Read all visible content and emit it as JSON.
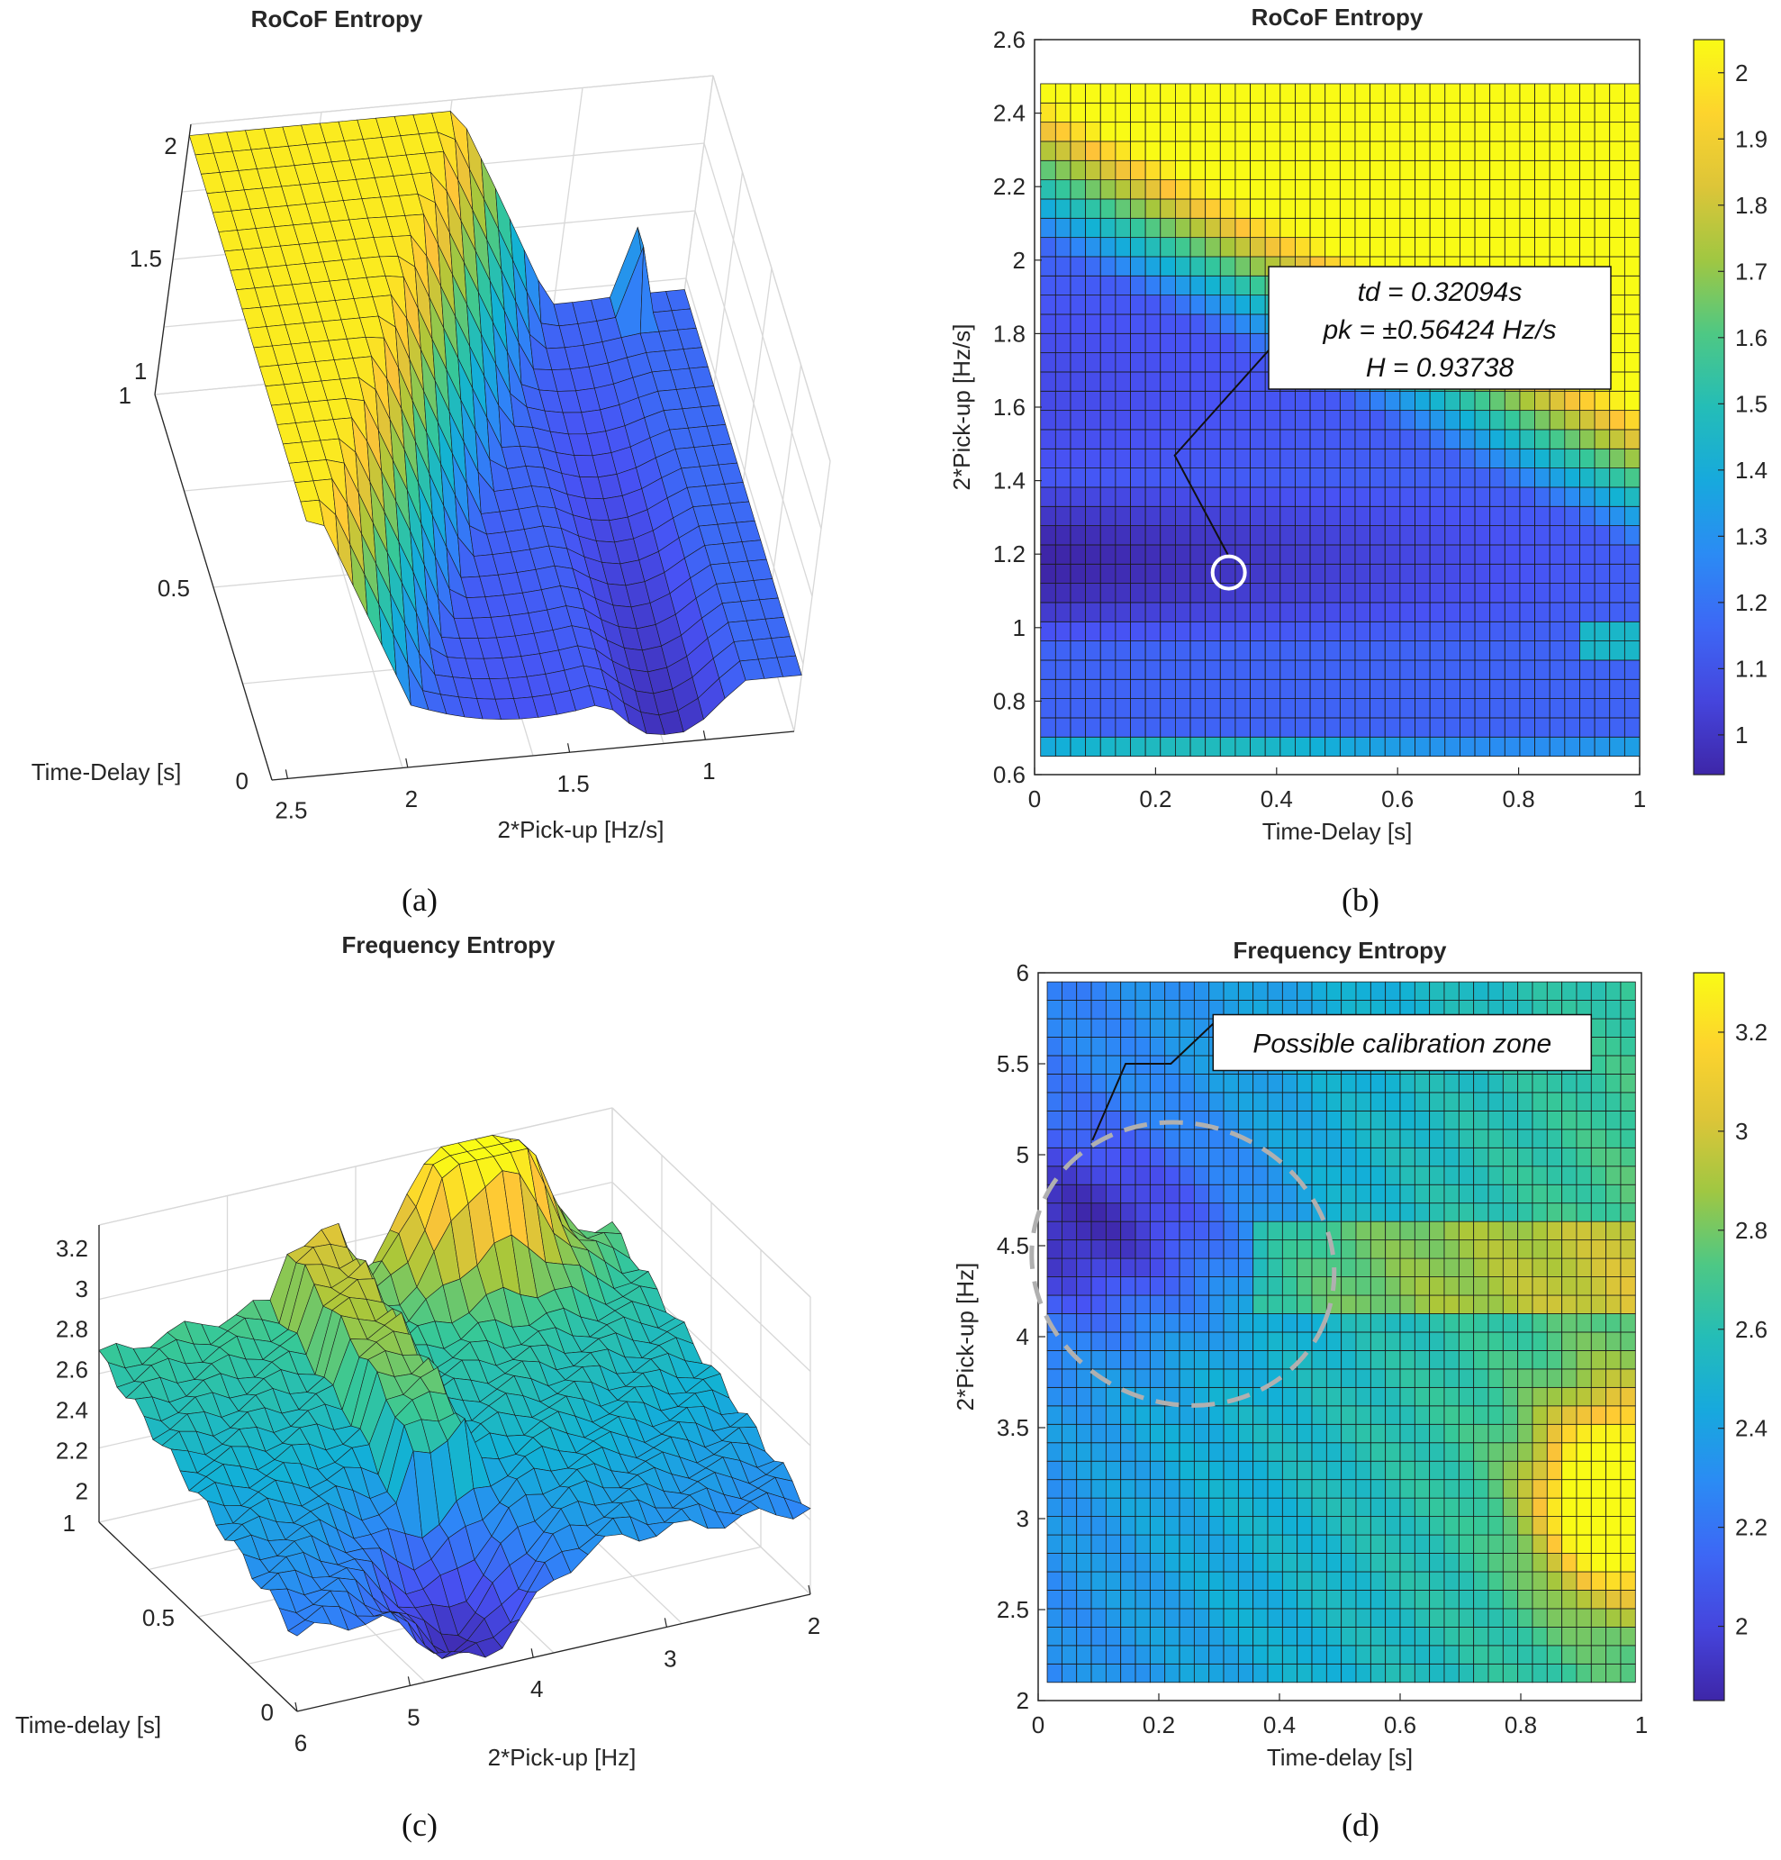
{
  "chart_data": [
    {
      "panel": "a",
      "type": "surface3d",
      "title": "RoCoF Entropy",
      "xlabel": "2*Pick-up [Hz/s]",
      "ylabel": "Time-Delay [s]",
      "xticks": [
        "2.5",
        "2",
        "1.5",
        "1"
      ],
      "yticks": [
        "0",
        "0.5",
        "1"
      ],
      "zticks": [
        "1",
        "1.5",
        "2"
      ],
      "zlim": [
        0.9,
        2.1
      ],
      "caption": "(a)"
    },
    {
      "panel": "b",
      "type": "heatmap",
      "title": "RoCoF Entropy",
      "xlabel": "Time-Delay [s]",
      "ylabel": "2*Pick-up [Hz/s]",
      "xlim": [
        0,
        1
      ],
      "ylim": [
        0.6,
        2.6
      ],
      "xticks": [
        "0",
        "0.2",
        "0.4",
        "0.6",
        "0.8",
        "1"
      ],
      "yticks": [
        "0.6",
        "0.8",
        "1",
        "1.2",
        "1.4",
        "1.6",
        "1.8",
        "2",
        "2.2",
        "2.4",
        "2.6"
      ],
      "colorbar_ticks": [
        "1",
        "1.1",
        "1.2",
        "1.3",
        "1.4",
        "1.5",
        "1.6",
        "1.7",
        "1.8",
        "1.9",
        "2"
      ],
      "clim": [
        0.94,
        2.05
      ],
      "annotation": {
        "lines": [
          "td = 0.32094s",
          "pk = ±0.56424 Hz/s",
          "H = 0.93738"
        ],
        "point_x": 0.32094,
        "point_y": 1.15
      },
      "caption": "(b)"
    },
    {
      "panel": "c",
      "type": "surface3d",
      "title": "Frequency Entropy",
      "xlabel": "2*Pick-up [Hz]",
      "ylabel": "Time-delay [s]",
      "xticks": [
        "6",
        "5",
        "4",
        "3",
        "2"
      ],
      "yticks": [
        "0",
        "0.5",
        "1"
      ],
      "zticks": [
        "2",
        "2.2",
        "2.4",
        "2.6",
        "2.8",
        "3",
        "3.2"
      ],
      "zlim": [
        1.85,
        3.32
      ],
      "caption": "(c)"
    },
    {
      "panel": "d",
      "type": "heatmap",
      "title": "Frequency Entropy",
      "xlabel": "Time-delay [s]",
      "ylabel": "2*Pick-up [Hz]",
      "xlim": [
        0,
        1
      ],
      "ylim": [
        2,
        6
      ],
      "xticks": [
        "0",
        "0.2",
        "0.4",
        "0.6",
        "0.8",
        "1"
      ],
      "yticks": [
        "2",
        "2.5",
        "3",
        "3.5",
        "4",
        "4.5",
        "5",
        "5.5",
        "6"
      ],
      "colorbar_ticks": [
        "2",
        "2.2",
        "2.4",
        "2.6",
        "2.8",
        "3",
        "3.2"
      ],
      "clim": [
        1.85,
        3.32
      ],
      "annotation": {
        "text": "Possible calibration zone"
      },
      "caption": "(d)"
    }
  ]
}
